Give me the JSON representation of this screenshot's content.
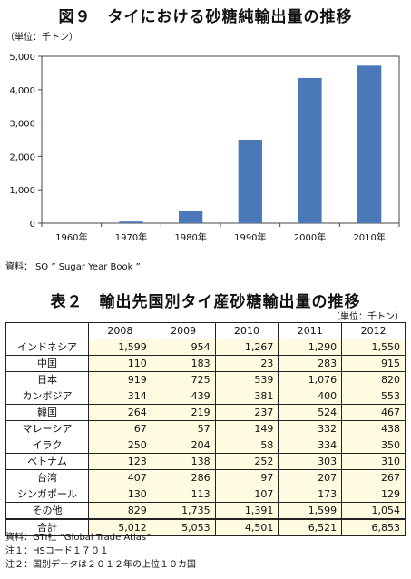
{
  "figure": {
    "title": "図９　タイにおける砂糖純輸出量の推移",
    "unit": "（単位：千トン）",
    "source": "資料：ISO ” Sugar Year Book ”"
  },
  "chart_data": {
    "type": "bar",
    "categories": [
      "1960年",
      "1970年",
      "1980年",
      "1990年",
      "2000年",
      "2010年"
    ],
    "values": [
      0,
      50,
      370,
      2500,
      4350,
      4720
    ],
    "ylim": [
      0,
      5000
    ],
    "yticks": [
      "0",
      "1,000",
      "2,000",
      "3,000",
      "4,000",
      "5,000"
    ],
    "grid": false,
    "bar_color": "#4a78b8"
  },
  "table": {
    "title": "表２　輸出先国別タイ産砂糖輸出量の推移",
    "unit": "（単位：千トン）",
    "columns": [
      "2008",
      "2009",
      "2010",
      "2011",
      "2012"
    ],
    "rows": [
      {
        "country": "インドネシア",
        "values": [
          "1,599",
          "954",
          "1,267",
          "1,290",
          "1,550"
        ]
      },
      {
        "country": "中国",
        "values": [
          "110",
          "183",
          "23",
          "283",
          "915"
        ]
      },
      {
        "country": "日本",
        "values": [
          "919",
          "725",
          "539",
          "1,076",
          "820"
        ]
      },
      {
        "country": "カンボジア",
        "values": [
          "314",
          "439",
          "381",
          "400",
          "553"
        ]
      },
      {
        "country": "韓国",
        "values": [
          "264",
          "219",
          "237",
          "524",
          "467"
        ]
      },
      {
        "country": "マレーシア",
        "values": [
          "67",
          "57",
          "149",
          "332",
          "438"
        ]
      },
      {
        "country": "イラク",
        "values": [
          "250",
          "204",
          "58",
          "334",
          "350"
        ]
      },
      {
        "country": "ベトナム",
        "values": [
          "123",
          "138",
          "252",
          "303",
          "310"
        ]
      },
      {
        "country": "台湾",
        "values": [
          "407",
          "286",
          "97",
          "207",
          "267"
        ]
      },
      {
        "country": "シンガポール",
        "values": [
          "130",
          "113",
          "107",
          "173",
          "129"
        ]
      },
      {
        "country": "その他",
        "values": [
          "829",
          "1,735",
          "1,391",
          "1,599",
          "1,054"
        ]
      }
    ],
    "total": {
      "country": "合計",
      "values": [
        "5,012",
        "5,053",
        "4,501",
        "6,521",
        "6,853"
      ]
    }
  },
  "notes": [
    "資料：GTI社 “Global Trade Atlas”",
    "注１：HSコード１７０１",
    "注２：国別データは２０１２年の上位１０カ国"
  ]
}
